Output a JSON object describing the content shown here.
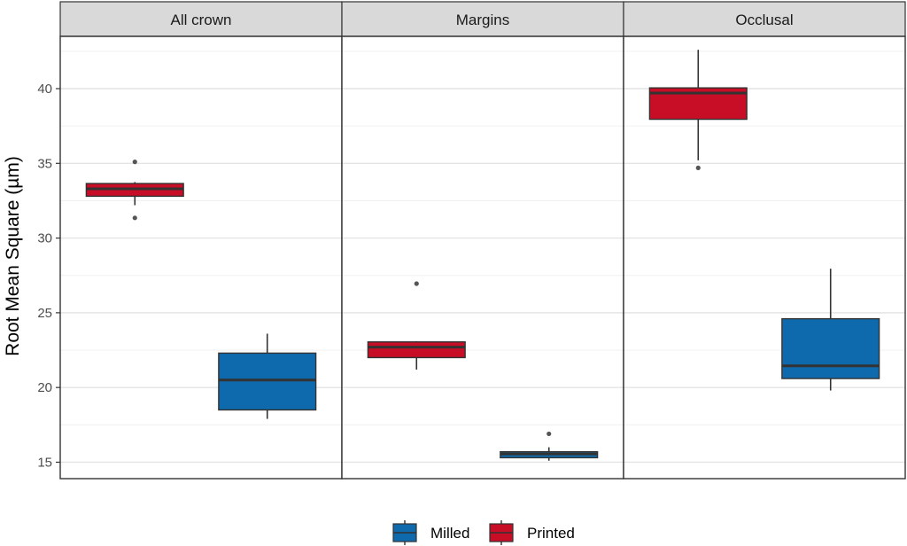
{
  "chart_data": {
    "type": "boxplot",
    "ylabel": "Root Mean Square (µm)",
    "ylim": [
      13.9,
      43.5
    ],
    "yticks": [
      15,
      20,
      25,
      30,
      35,
      40
    ],
    "facets": [
      "All crown",
      "Margins",
      "Occlusal"
    ],
    "groups": [
      "Printed",
      "Milled"
    ],
    "colors": {
      "Milled": "#0f6aad",
      "Printed": "#c80d26"
    },
    "grid": true,
    "legend_position": "bottom",
    "boxes": [
      {
        "facet": "All crown",
        "group": "Printed",
        "whisker_low": 32.2,
        "q1": 32.8,
        "median": 33.3,
        "q3": 33.65,
        "whisker_high": 33.75,
        "outliers": [
          35.1,
          31.35
        ]
      },
      {
        "facet": "All crown",
        "group": "Milled",
        "whisker_low": 17.9,
        "q1": 18.5,
        "median": 20.5,
        "q3": 22.3,
        "whisker_high": 23.6,
        "outliers": []
      },
      {
        "facet": "Margins",
        "group": "Printed",
        "whisker_low": 21.2,
        "q1": 22.0,
        "median": 22.7,
        "q3": 23.05,
        "whisker_high": 23.1,
        "outliers": [
          26.95
        ]
      },
      {
        "facet": "Margins",
        "group": "Milled",
        "whisker_low": 15.1,
        "q1": 15.3,
        "median": 15.55,
        "q3": 15.7,
        "whisker_high": 16.0,
        "outliers": [
          16.9
        ]
      },
      {
        "facet": "Occlusal",
        "group": "Printed",
        "whisker_low": 35.2,
        "q1": 37.95,
        "median": 39.7,
        "q3": 40.05,
        "whisker_high": 42.6,
        "outliers": [
          34.7
        ]
      },
      {
        "facet": "Occlusal",
        "group": "Milled",
        "whisker_low": 19.8,
        "q1": 20.6,
        "median": 21.45,
        "q3": 24.6,
        "whisker_high": 27.95,
        "outliers": []
      }
    ]
  },
  "legend": {
    "items": [
      {
        "label": "Milled",
        "color": "#0f6aad"
      },
      {
        "label": "Printed",
        "color": "#c80d26"
      }
    ]
  }
}
